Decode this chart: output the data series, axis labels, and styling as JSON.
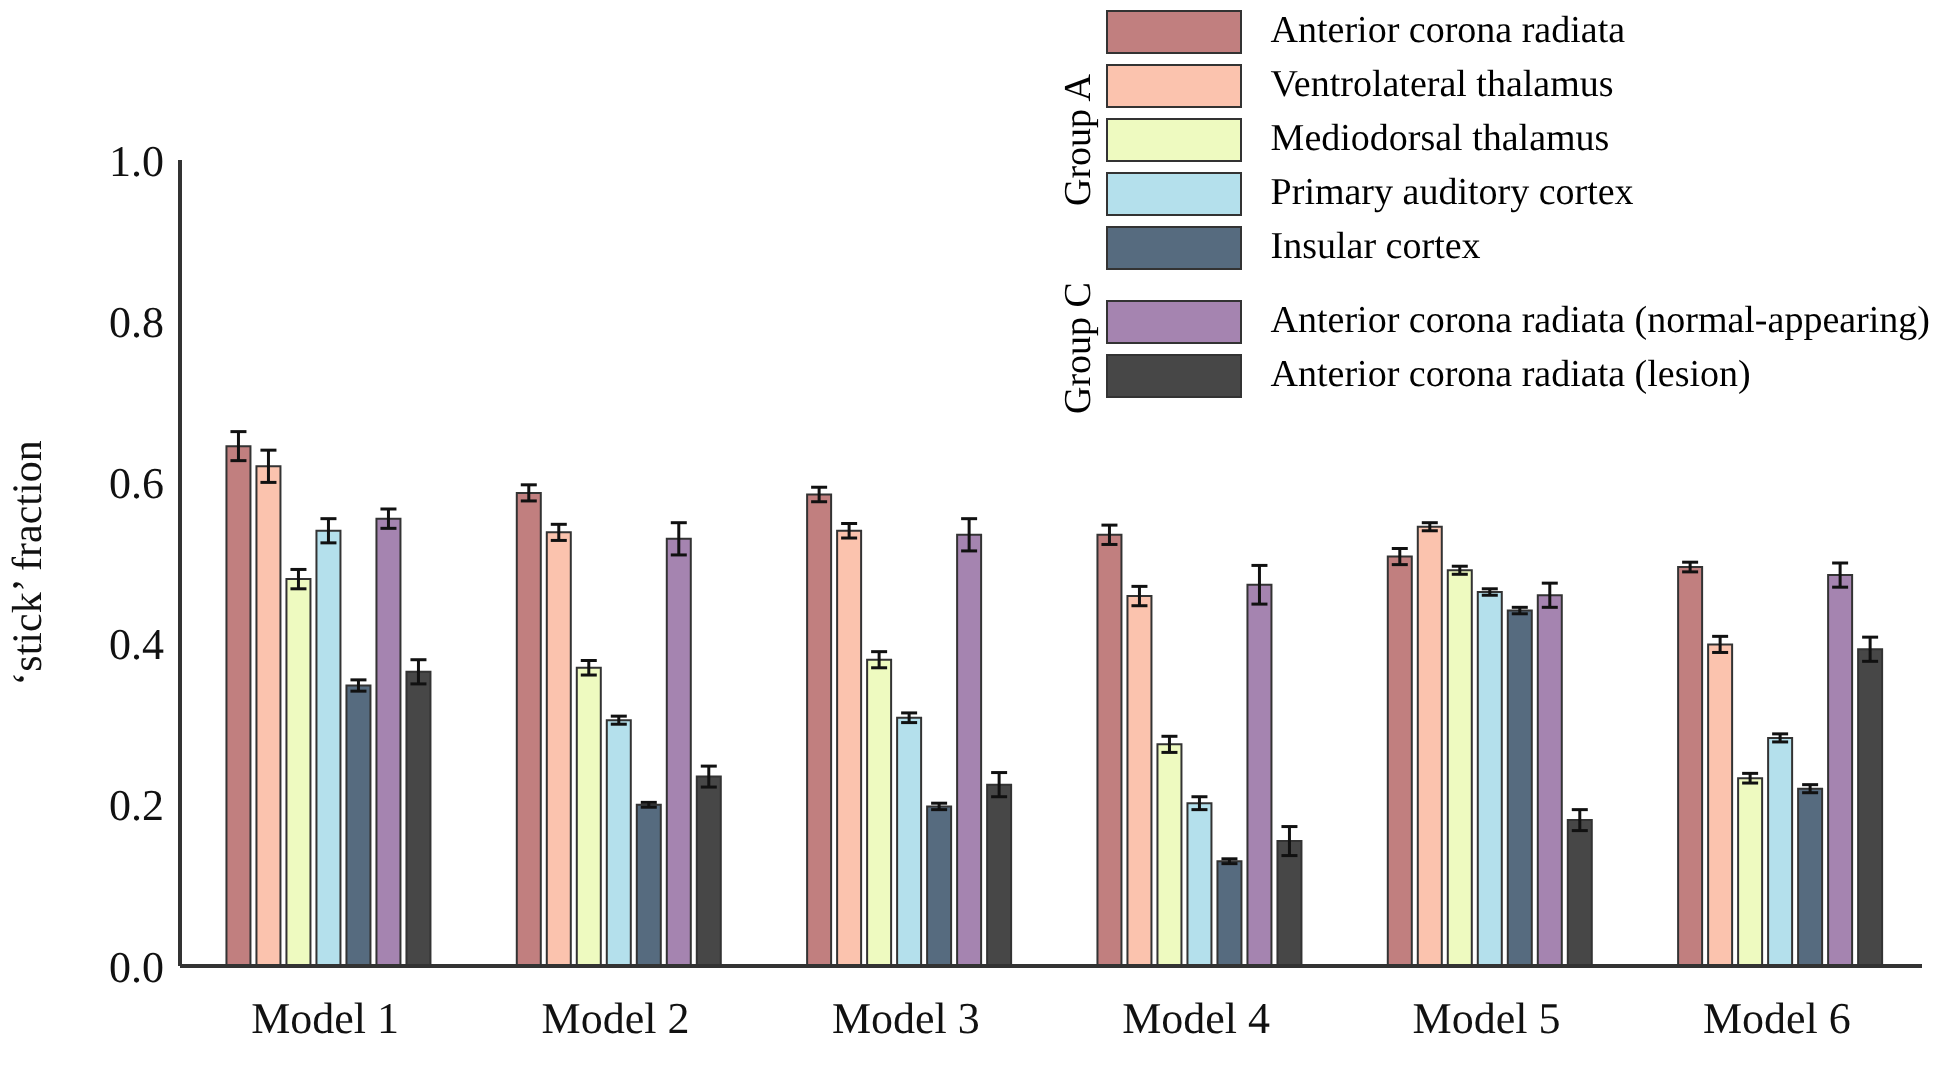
{
  "chart_data": {
    "type": "bar",
    "ylabel": "‘stick’ fraction",
    "categories": [
      "Model 1",
      "Model 2",
      "Model 3",
      "Model 4",
      "Model 5",
      "Model 6"
    ],
    "series": [
      {
        "name": "Anterior corona radiata",
        "color": "#c17f7f",
        "values": [
          0.645,
          0.587,
          0.585,
          0.535,
          0.508,
          0.495
        ],
        "errors": [
          0.018,
          0.01,
          0.009,
          0.012,
          0.01,
          0.006
        ]
      },
      {
        "name": "Ventrolateral thalamus",
        "color": "#fbc3ae",
        "values": [
          0.62,
          0.538,
          0.54,
          0.459,
          0.545,
          0.399
        ],
        "errors": [
          0.02,
          0.01,
          0.009,
          0.012,
          0.005,
          0.01
        ]
      },
      {
        "name": "Mediodorsal thalamus",
        "color": "#eefac0",
        "values": [
          0.48,
          0.37,
          0.38,
          0.275,
          0.491,
          0.233
        ],
        "errors": [
          0.012,
          0.009,
          0.01,
          0.01,
          0.005,
          0.006
        ]
      },
      {
        "name": "Primary auditory cortex",
        "color": "#b4e0ec",
        "values": [
          0.54,
          0.305,
          0.308,
          0.202,
          0.464,
          0.283
        ],
        "errors": [
          0.015,
          0.005,
          0.006,
          0.008,
          0.004,
          0.005
        ]
      },
      {
        "name": "Insular cortex",
        "color": "#566b7f",
        "values": [
          0.348,
          0.2,
          0.198,
          0.13,
          0.441,
          0.22
        ],
        "errors": [
          0.007,
          0.003,
          0.004,
          0.003,
          0.004,
          0.005
        ]
      },
      {
        "name": "Anterior corona radiata (normal-appearing)",
        "color": "#a584b0",
        "values": [
          0.555,
          0.53,
          0.535,
          0.473,
          0.46,
          0.485
        ],
        "errors": [
          0.012,
          0.02,
          0.02,
          0.024,
          0.015,
          0.015
        ]
      },
      {
        "name": "Anterior corona radiata (lesion)",
        "color": "#474747",
        "values": [
          0.365,
          0.235,
          0.225,
          0.155,
          0.181,
          0.393
        ],
        "errors": [
          0.015,
          0.013,
          0.015,
          0.018,
          0.013,
          0.015
        ]
      }
    ],
    "ylim": [
      0,
      1
    ],
    "yticks": [
      {
        "value": 0,
        "label": "0.0"
      },
      {
        "value": 0.2,
        "label": "0.2"
      },
      {
        "value": 0.4,
        "label": "0.4"
      },
      {
        "value": 0.6,
        "label": "0.6"
      },
      {
        "value": 0.8,
        "label": "0.8"
      },
      {
        "value": 1,
        "label": "1.0"
      }
    ],
    "grid": false,
    "legend": "top right",
    "annotations": [
      "Group A",
      "Group C"
    ]
  }
}
